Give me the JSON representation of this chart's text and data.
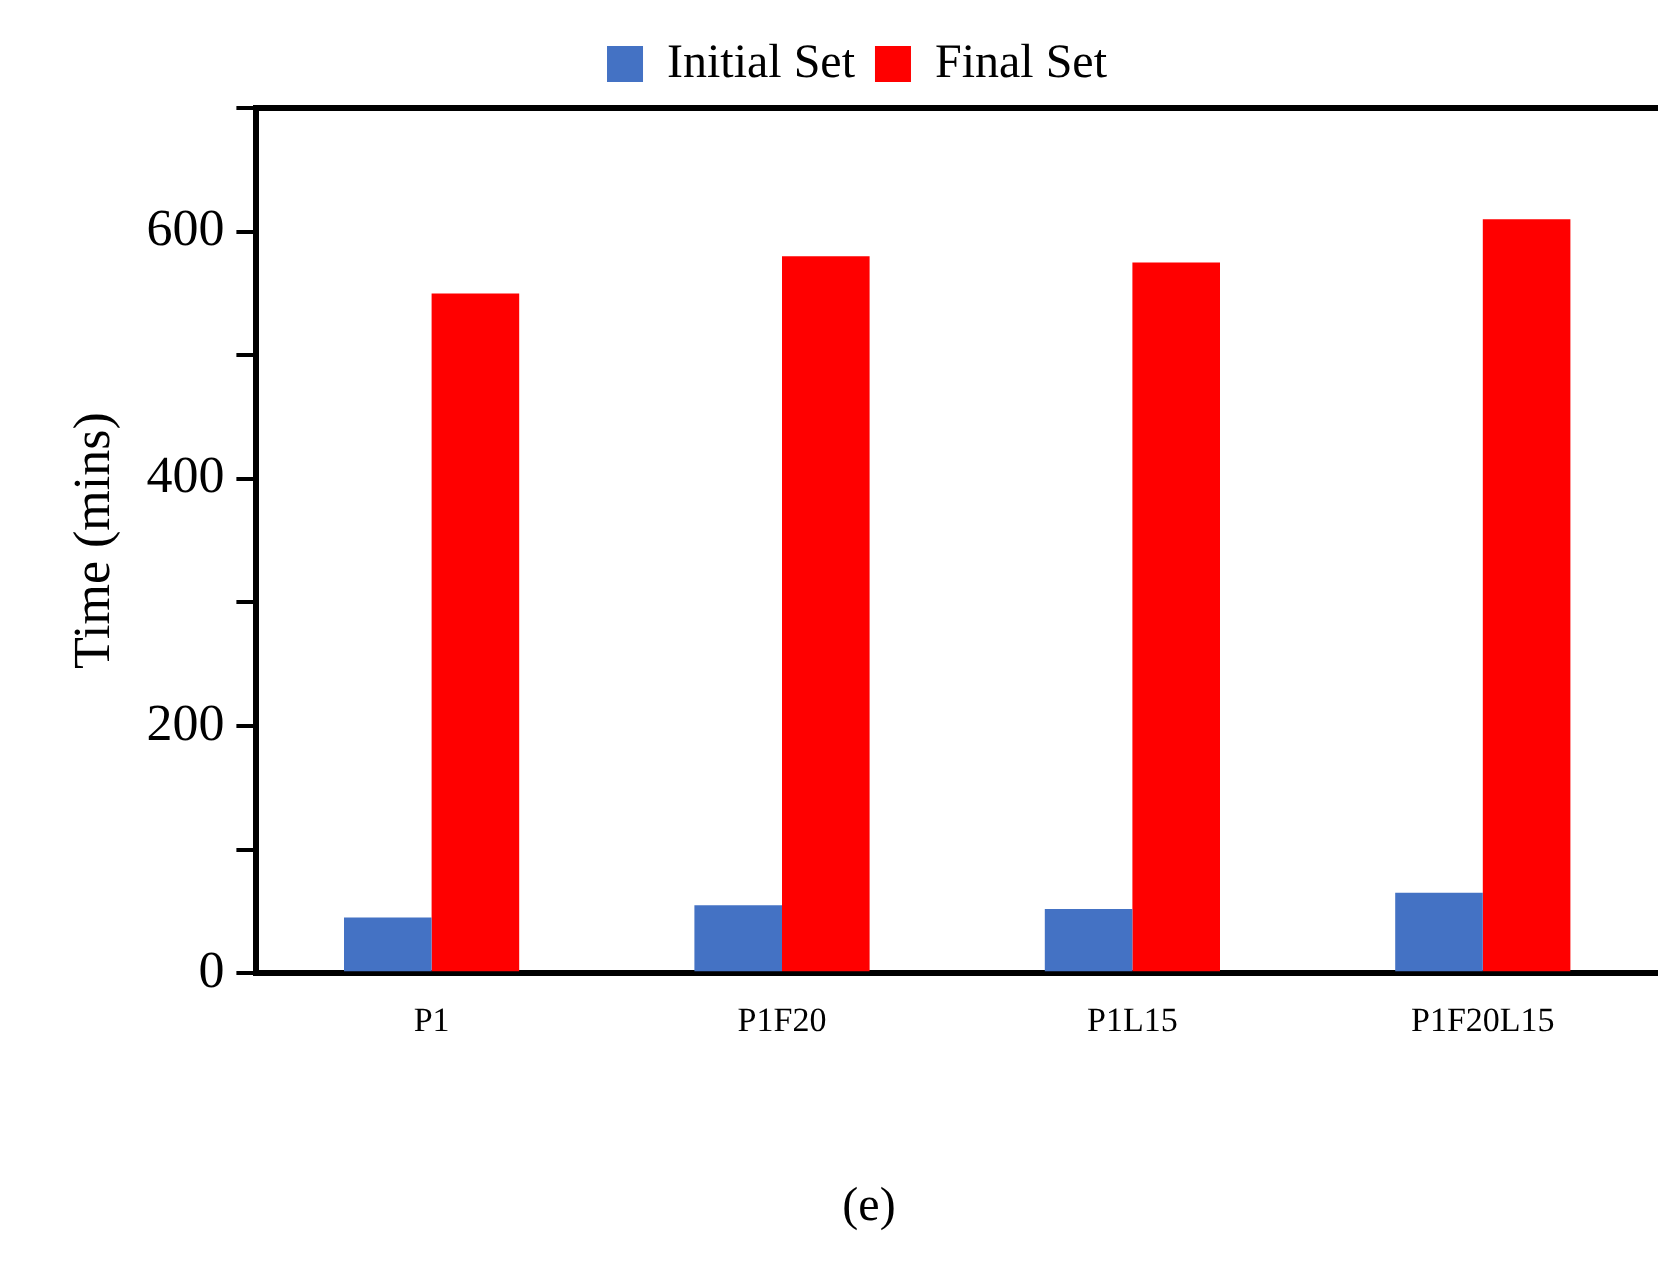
{
  "chart_data": {
    "type": "bar",
    "ylabel": "Time (mins)",
    "categories": [
      "P1",
      "P1F20",
      "P1L15",
      "P1F20L15"
    ],
    "series": [
      {
        "name": "Initial Set",
        "color": "#4472c4",
        "values": [
          45,
          55,
          52,
          65
        ]
      },
      {
        "name": "Final Set",
        "color": "#ff0000",
        "values": [
          550,
          580,
          575,
          610
        ]
      }
    ],
    "ylim": [
      0,
      700
    ],
    "yticks": [
      0,
      {
        "value": 100,
        "label": null
      },
      200,
      {
        "value": 300,
        "label": null
      },
      400,
      {
        "value": 500,
        "label": null
      },
      600,
      {
        "value": 700,
        "label": null
      }
    ],
    "grid": false,
    "legend": "top",
    "annotations": [
      "(e)"
    ]
  }
}
